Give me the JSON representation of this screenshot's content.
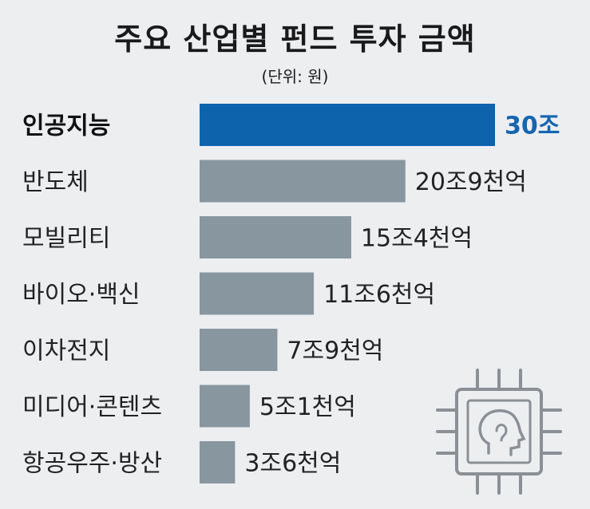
{
  "chart_data": {
    "type": "bar",
    "orientation": "horizontal",
    "title": "주요 산업별 펀드 투자 금액",
    "unit": "(단위: 원)",
    "categories": [
      "인공지능",
      "반도체",
      "모빌리티",
      "바이오·백신",
      "이차전지",
      "미디어·콘텐츠",
      "항공우주·방산"
    ],
    "values": [
      300000,
      209000,
      154000,
      116000,
      79000,
      51000,
      36000
    ],
    "values_unit": "억 원",
    "value_labels": [
      "30조",
      "20조9천억",
      "15조4천억",
      "11조6천억",
      "7조9천억",
      "5조1천억",
      "3조6천억"
    ],
    "highlight_index": 0,
    "grid": false,
    "legend": "none"
  },
  "colors": {
    "highlight": "#0d63ac",
    "bar": "#8896a0",
    "highlight_text": "#1565b0",
    "background": "#eceef0"
  },
  "decoration": {
    "icon": "ai-chip-icon"
  }
}
